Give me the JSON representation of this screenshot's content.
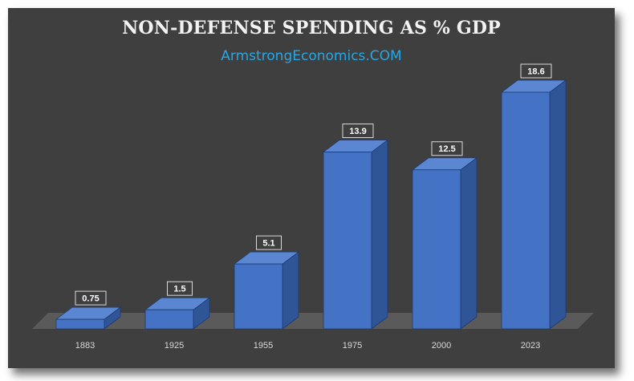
{
  "chart_data": {
    "type": "bar",
    "title": "NON-DEFENSE SPENDING AS % GDP",
    "subtitle": "ArmstrongEconomics.COM",
    "categories": [
      "1883",
      "1925",
      "1955",
      "1975",
      "2000",
      "2023"
    ],
    "values": [
      0.75,
      1.5,
      5.1,
      13.9,
      12.5,
      18.6
    ],
    "data_labels": [
      "0.75",
      "1.5",
      "5.1",
      "13.9",
      "12.5",
      "18.6"
    ],
    "ylim": [
      0,
      18.6
    ],
    "grid": false,
    "legend": "none",
    "style": "3d-column"
  },
  "colors": {
    "background": "#3f3f3f",
    "floor": "#5a5a5a",
    "bar_front": "#4472c4",
    "bar_side": "#2f5597",
    "bar_top": "#5b86d2",
    "title": "#f2f2f2",
    "subtitle": "#25a7e6",
    "tick_label": "#d9d9d9"
  }
}
